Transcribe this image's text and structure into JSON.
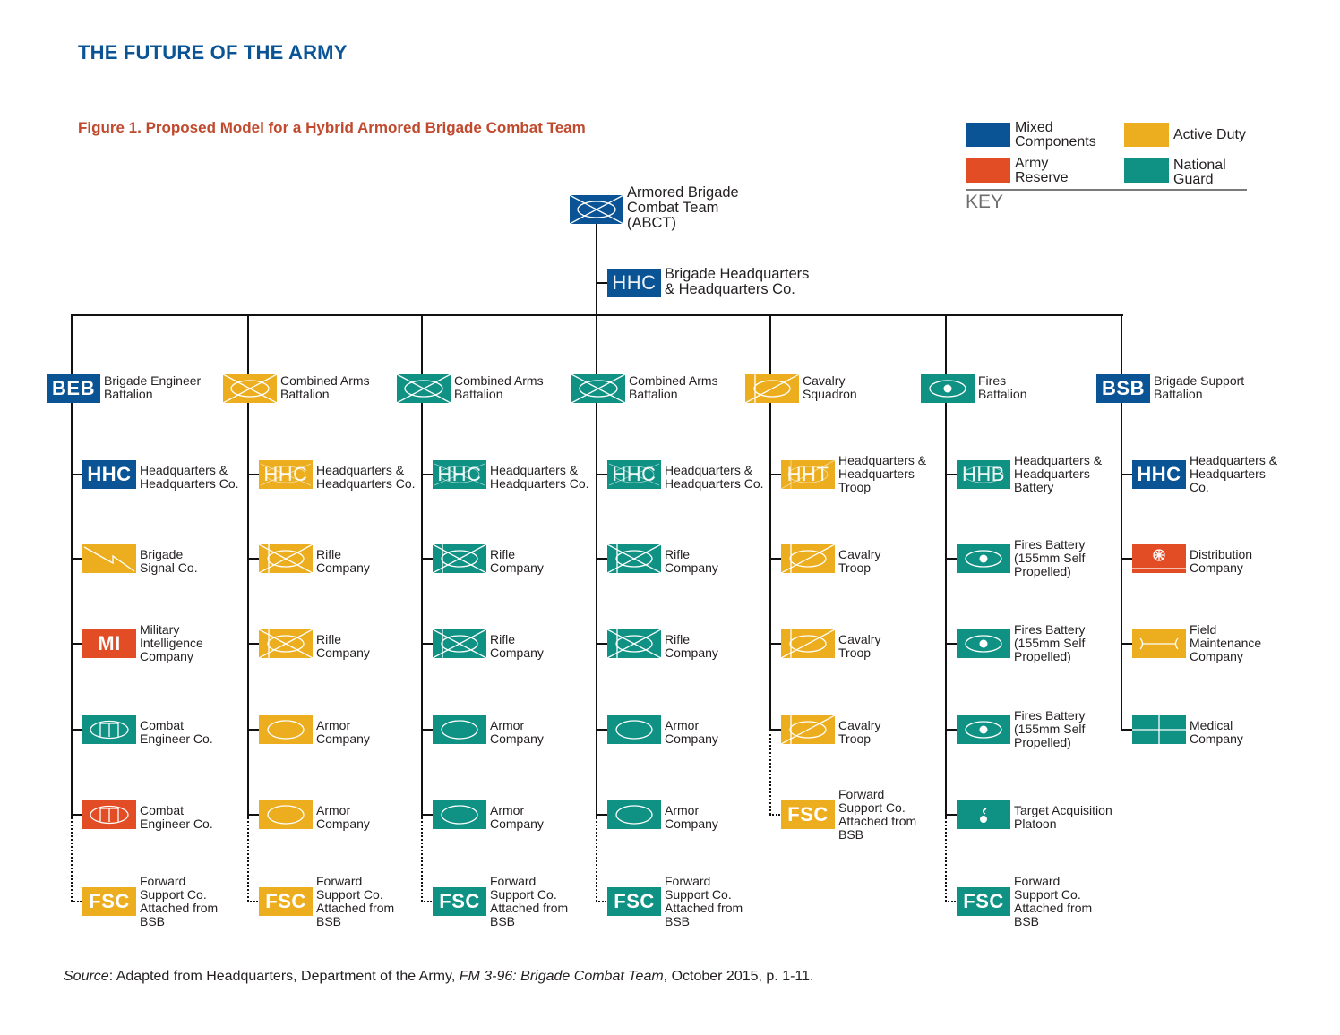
{
  "header": {
    "title": "THE FUTURE OF THE ARMY",
    "figure_title": "Figure 1. Proposed Model for a Hybrid Armored Brigade Combat Team"
  },
  "colors": {
    "mixed": "#0a5496",
    "active": "#ecae1f",
    "reserve": "#e34d25",
    "guard": "#0f9184",
    "title_blue": "#0a5496",
    "figure_red": "#c0492e"
  },
  "legend": {
    "title": "KEY",
    "items": [
      {
        "label": "Mixed\nComponents",
        "color": "mixed"
      },
      {
        "label": "Active Duty",
        "color": "active"
      },
      {
        "label": "Army\nReserve",
        "color": "reserve"
      },
      {
        "label": "National\nGuard",
        "color": "guard"
      }
    ]
  },
  "top": {
    "abct": {
      "label": "Armored Brigade\nCombat Team\n(ABCT)",
      "color": "mixed",
      "symbol": "armored-infantry-icon"
    },
    "hhc": {
      "abbr": "HHC",
      "label": "Brigade Headquarters\n& Headquarters Co.",
      "color": "mixed"
    }
  },
  "battalions": [
    {
      "label": "Brigade Engineer\nBattalion",
      "abbr": "BEB",
      "color": "mixed",
      "symbol": "text",
      "units": [
        {
          "abbr": "HHC",
          "label": "Headquarters &\nHeadquarters Co.",
          "color": "mixed",
          "symbol": "text"
        },
        {
          "label": "Brigade\nSignal Co.",
          "color": "active",
          "symbol": "signal-icon"
        },
        {
          "abbr": "MI",
          "label": "Military\nIntelligence\nCompany",
          "color": "reserve",
          "symbol": "text"
        },
        {
          "label": "Combat\nEngineer Co.",
          "color": "guard",
          "symbol": "engineer-icon"
        },
        {
          "label": "Combat\nEngineer Co.",
          "color": "reserve",
          "symbol": "engineer-icon"
        },
        {
          "abbr": "FSC",
          "label": "Forward\nSupport Co.\nAttached from\nBSB",
          "color": "active",
          "symbol": "text",
          "attached": true
        }
      ]
    },
    {
      "label": "Combined Arms\nBattalion",
      "color": "active",
      "symbol": "combined-arms-icon",
      "units": [
        {
          "abbr": "HHC",
          "label": "Headquarters &\nHeadquarters Co.",
          "color": "active",
          "symbol": "hhc-combined-icon"
        },
        {
          "label": "Rifle\nCompany",
          "color": "active",
          "symbol": "rifle-icon"
        },
        {
          "label": "Rifle\nCompany",
          "color": "active",
          "symbol": "rifle-icon"
        },
        {
          "label": "Armor\nCompany",
          "color": "active",
          "symbol": "armor-icon"
        },
        {
          "label": "Armor\nCompany",
          "color": "active",
          "symbol": "armor-icon"
        },
        {
          "abbr": "FSC",
          "label": "Forward\nSupport Co.\nAttached from\nBSB",
          "color": "active",
          "symbol": "text",
          "attached": true
        }
      ]
    },
    {
      "label": "Combined Arms\nBattalion",
      "color": "guard",
      "symbol": "combined-arms-icon",
      "units": [
        {
          "abbr": "HHC",
          "label": "Headquarters &\nHeadquarters Co.",
          "color": "guard",
          "symbol": "hhc-combined-icon"
        },
        {
          "label": "Rifle\nCompany",
          "color": "guard",
          "symbol": "rifle-icon"
        },
        {
          "label": "Rifle\nCompany",
          "color": "guard",
          "symbol": "rifle-icon"
        },
        {
          "label": "Armor\nCompany",
          "color": "guard",
          "symbol": "armor-icon"
        },
        {
          "label": "Armor\nCompany",
          "color": "guard",
          "symbol": "armor-icon"
        },
        {
          "abbr": "FSC",
          "label": "Forward\nSupport Co.\nAttached from\nBSB",
          "color": "guard",
          "symbol": "text",
          "attached": true
        }
      ]
    },
    {
      "label": "Combined Arms\nBattalion",
      "color": "guard",
      "symbol": "combined-arms-icon",
      "units": [
        {
          "abbr": "HHC",
          "label": "Headquarters &\nHeadquarters Co.",
          "color": "guard",
          "symbol": "hhc-combined-icon"
        },
        {
          "label": "Rifle\nCompany",
          "color": "guard",
          "symbol": "rifle-icon"
        },
        {
          "label": "Rifle\nCompany",
          "color": "guard",
          "symbol": "rifle-icon"
        },
        {
          "label": "Armor\nCompany",
          "color": "guard",
          "symbol": "armor-icon"
        },
        {
          "label": "Armor\nCompany",
          "color": "guard",
          "symbol": "armor-icon"
        },
        {
          "abbr": "FSC",
          "label": "Forward\nSupport Co.\nAttached from\nBSB",
          "color": "guard",
          "symbol": "text",
          "attached": true
        }
      ]
    },
    {
      "label": "Cavalry\nSquadron",
      "color": "active",
      "symbol": "cavalry-icon",
      "units": [
        {
          "abbr": "HHT",
          "label": "Headquarters &\nHeadquarters\nTroop",
          "color": "active",
          "symbol": "hht-cavalry-icon"
        },
        {
          "label": "Cavalry\nTroop",
          "color": "active",
          "symbol": "cavalry-icon"
        },
        {
          "label": "Cavalry\nTroop",
          "color": "active",
          "symbol": "cavalry-icon"
        },
        {
          "label": "Cavalry\nTroop",
          "color": "active",
          "symbol": "cavalry-icon"
        },
        {
          "abbr": "FSC",
          "label": "Forward\nSupport Co.\nAttached from\nBSB",
          "color": "active",
          "symbol": "text",
          "attached": true
        }
      ]
    },
    {
      "label": "Fires\nBattalion",
      "color": "guard",
      "symbol": "fires-icon",
      "units": [
        {
          "abbr": "HHB",
          "label": "Headquarters &\nHeadquarters\nBattery",
          "color": "guard",
          "symbol": "hhb-fires-icon"
        },
        {
          "label": "Fires Battery\n(155mm Self\nPropelled)",
          "color": "guard",
          "symbol": "fires-icon"
        },
        {
          "label": "Fires Battery\n(155mm Self\nPropelled)",
          "color": "guard",
          "symbol": "fires-icon"
        },
        {
          "label": "Fires Battery\n(155mm Self\nPropelled)",
          "color": "guard",
          "symbol": "fires-icon"
        },
        {
          "label": "Target Acquisition\nPlatoon",
          "color": "guard",
          "symbol": "target-acquisition-icon"
        },
        {
          "abbr": "FSC",
          "label": "Forward\nSupport Co.\nAttached from\nBSB",
          "color": "guard",
          "symbol": "text",
          "attached": true
        }
      ]
    },
    {
      "label": "Brigade Support\nBattalion",
      "abbr": "BSB",
      "color": "mixed",
      "symbol": "text",
      "units": [
        {
          "abbr": "HHC",
          "label": "Headquarters &\nHeadquarters\nCo.",
          "color": "mixed",
          "symbol": "text"
        },
        {
          "label": "Distribution\nCompany",
          "color": "reserve",
          "symbol": "distribution-icon"
        },
        {
          "label": "Field\nMaintenance\nCompany",
          "color": "active",
          "symbol": "maintenance-icon"
        },
        {
          "label": "Medical\nCompany",
          "color": "guard",
          "symbol": "medical-icon"
        }
      ]
    }
  ],
  "source": {
    "prefix": "Source",
    "text1": ": Adapted from Headquarters, Department of the Army, ",
    "publication": "FM 3-96: Brigade Combat Team",
    "text2": ", October 2015, p. 1-11."
  }
}
